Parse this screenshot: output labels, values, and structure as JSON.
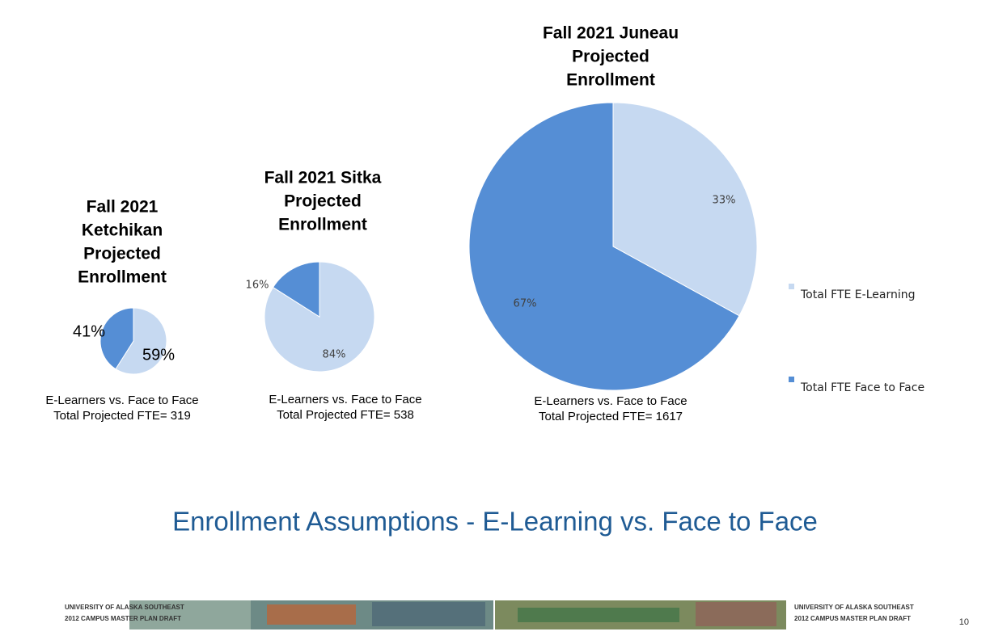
{
  "chart_data": [
    {
      "type": "pie",
      "title": [
        "Fall 2021",
        "Ketchikan",
        "Projected",
        "Enrollment"
      ],
      "values": [
        59,
        41
      ],
      "value_labels": [
        "59%",
        "41%"
      ],
      "colors": [
        "#c6d9f1",
        "#558ed5"
      ],
      "subtitle": [
        "E-Learners vs. Face to Face",
        "Total Projected FTE= 319"
      ]
    },
    {
      "type": "pie",
      "title": [
        "Fall 2021 Sitka",
        "Projected",
        "Enrollment"
      ],
      "values": [
        84,
        16
      ],
      "value_labels": [
        "84%",
        "16%"
      ],
      "colors": [
        "#c6d9f1",
        "#558ed5"
      ],
      "subtitle": [
        "E-Learners vs. Face to Face",
        "Total Projected FTE= 538"
      ]
    },
    {
      "type": "pie",
      "title": [
        "Fall 2021 Juneau",
        "Projected",
        "Enrollment"
      ],
      "values": [
        33,
        67
      ],
      "value_labels": [
        "33%",
        "67%"
      ],
      "colors": [
        "#c6d9f1",
        "#558ed5"
      ],
      "categories": [
        "Total FTE E-Learning",
        "Total FTE Face to Face"
      ],
      "subtitle": [
        "E-Learners vs. Face to Face",
        "Total Projected FTE= 1617"
      ]
    }
  ],
  "title": "Enrollment Assumptions   -   E-Learning vs. Face to Face",
  "footer": {
    "left": [
      "UNIVERSITY OF ALASKA SOUTHEAST",
      "2012 CAMPUS MASTER PLAN DRAFT"
    ],
    "right": [
      "UNIVERSITY OF ALASKA SOUTHEAST",
      "2012 CAMPUS MASTER PLAN DRAFT"
    ],
    "page": "10"
  }
}
